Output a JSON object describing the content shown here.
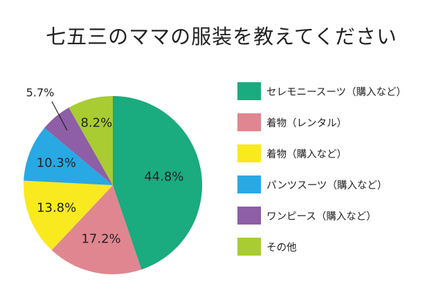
{
  "title": "七五三のママの服装を教えてください",
  "chart_data": {
    "type": "pie",
    "title": "七五三のママの服装を教えてください",
    "start_angle_deg": 0,
    "direction": "clockwise",
    "legend_position": "right",
    "slices": [
      {
        "label": "セレモニースーツ（購入など）",
        "value": 44.8,
        "display": "44.8%",
        "color": "#1aab7e"
      },
      {
        "label": "着物（レンタル）",
        "value": 17.2,
        "display": "17.2%",
        "color": "#e08690"
      },
      {
        "label": "着物（購入など）",
        "value": 13.8,
        "display": "13.8%",
        "color": "#f8ea1e"
      },
      {
        "label": "パンツスーツ（購入など）",
        "value": 10.3,
        "display": "10.3%",
        "color": "#28a9e4"
      },
      {
        "label": "ワンピース（購入など）",
        "value": 5.7,
        "display": "5.7%",
        "color": "#8e5ea6"
      },
      {
        "label": "その他",
        "value": 8.2,
        "display": "8.2%",
        "color": "#a8cc32"
      }
    ]
  }
}
